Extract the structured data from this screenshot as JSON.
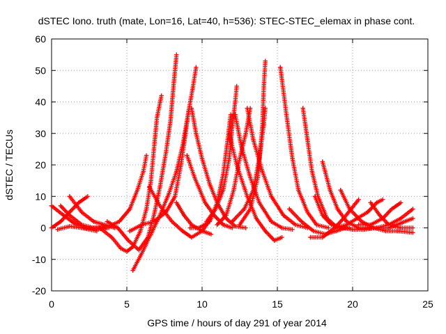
{
  "chart_data": {
    "type": "scatter",
    "title": "dSTEC Iono. truth (mate, Lon=16, Lat=40, h=536): STEC-STEC_elemax in phase cont.",
    "xlabel": "GPS time / hours of day 291 of year 2014",
    "ylabel": "dSTEC  / TECUs",
    "xlim": [
      0,
      25
    ],
    "ylim": [
      -20,
      60
    ],
    "xticks": [
      0,
      5,
      10,
      15,
      20,
      25
    ],
    "yticks": [
      -20,
      -10,
      0,
      10,
      20,
      30,
      40,
      50,
      60
    ],
    "grid": true,
    "marker": "+",
    "color": "#ff0000",
    "series": [
      {
        "points": [
          [
            0.0,
            7
          ],
          [
            0.8,
            4
          ],
          [
            1.5,
            1.5
          ],
          [
            2.3,
            0
          ],
          [
            3.0,
            -0.5
          ],
          [
            3.8,
            0
          ]
        ]
      },
      {
        "points": [
          [
            0.0,
            0
          ],
          [
            0.6,
            2
          ],
          [
            1.2,
            5
          ],
          [
            1.8,
            8
          ],
          [
            2.4,
            10
          ]
        ]
      },
      {
        "points": [
          [
            0.6,
            7
          ],
          [
            1.2,
            4
          ],
          [
            2.0,
            1
          ],
          [
            2.8,
            0
          ],
          [
            3.6,
            0
          ]
        ]
      },
      {
        "points": [
          [
            1.2,
            10
          ],
          [
            2.0,
            5
          ],
          [
            2.8,
            2
          ],
          [
            3.5,
            1
          ],
          [
            4.2,
            0
          ]
        ]
      },
      {
        "points": [
          [
            0.4,
            -0.5
          ],
          [
            1.2,
            0.5
          ],
          [
            2.0,
            0
          ],
          [
            3.0,
            -1
          ]
        ]
      },
      {
        "points": [
          [
            2.2,
            0
          ],
          [
            3.0,
            0
          ],
          [
            3.8,
            0.5
          ],
          [
            4.5,
            2
          ],
          [
            5.2,
            6
          ],
          [
            5.7,
            12
          ],
          [
            6.1,
            18
          ],
          [
            6.3,
            23
          ]
        ]
      },
      {
        "points": [
          [
            3.2,
            0
          ],
          [
            4.0,
            -3
          ],
          [
            4.6,
            -6.5
          ],
          [
            5.0,
            -7.5
          ],
          [
            5.4,
            -6
          ],
          [
            5.9,
            -1
          ],
          [
            6.3,
            6
          ],
          [
            6.6,
            15
          ],
          [
            6.8,
            25
          ],
          [
            7.0,
            35
          ],
          [
            7.3,
            42
          ]
        ]
      },
      {
        "points": [
          [
            3.7,
            2
          ],
          [
            4.4,
            0
          ],
          [
            5.1,
            -4
          ],
          [
            5.8,
            -7
          ],
          [
            6.4,
            -3
          ],
          [
            6.8,
            4
          ],
          [
            7.2,
            13
          ],
          [
            7.6,
            24
          ],
          [
            7.9,
            34
          ],
          [
            8.1,
            45
          ],
          [
            8.3,
            55
          ]
        ]
      },
      {
        "points": [
          [
            5.4,
            -13.5
          ],
          [
            6.0,
            -8
          ],
          [
            6.6,
            -2
          ],
          [
            7.2,
            4
          ],
          [
            7.8,
            11
          ],
          [
            8.3,
            18
          ],
          [
            8.7,
            26
          ],
          [
            9.1,
            37
          ],
          [
            9.4,
            45
          ],
          [
            9.6,
            51
          ]
        ]
      },
      {
        "points": [
          [
            6.5,
            13
          ],
          [
            7.2,
            7
          ],
          [
            8.0,
            2
          ],
          [
            8.7,
            -1
          ],
          [
            9.3,
            -3
          ],
          [
            10.0,
            -1
          ],
          [
            10.6,
            3
          ]
        ]
      },
      {
        "points": [
          [
            5.2,
            -1
          ],
          [
            6.0,
            1
          ],
          [
            6.8,
            2
          ],
          [
            7.6,
            5
          ],
          [
            8.2,
            10
          ],
          [
            8.6,
            20
          ],
          [
            8.9,
            30
          ],
          [
            9.1,
            37
          ]
        ]
      },
      {
        "points": [
          [
            8.3,
            8
          ],
          [
            8.8,
            4
          ],
          [
            9.3,
            1
          ],
          [
            10.0,
            -1
          ],
          [
            10.6,
            -2
          ]
        ]
      },
      {
        "points": [
          [
            9.3,
            38
          ],
          [
            9.6,
            30
          ],
          [
            10.0,
            22
          ],
          [
            10.5,
            14
          ],
          [
            11.0,
            8
          ],
          [
            11.6,
            3
          ],
          [
            12.2,
            0.5
          ],
          [
            12.9,
            0
          ]
        ]
      },
      {
        "points": [
          [
            9.0,
            23
          ],
          [
            9.5,
            16
          ],
          [
            10.2,
            8
          ],
          [
            10.8,
            4
          ],
          [
            11.4,
            1
          ],
          [
            12.0,
            0
          ]
        ]
      },
      {
        "points": [
          [
            9.2,
            0
          ],
          [
            9.8,
            0
          ],
          [
            10.5,
            2
          ],
          [
            11.0,
            8
          ],
          [
            11.4,
            17
          ],
          [
            11.7,
            28
          ],
          [
            11.9,
            36
          ]
        ]
      },
      {
        "points": [
          [
            10.3,
            2
          ],
          [
            10.9,
            6
          ],
          [
            11.4,
            12
          ],
          [
            11.8,
            22
          ],
          [
            12.0,
            32
          ],
          [
            12.2,
            40
          ],
          [
            12.3,
            45
          ]
        ]
      },
      {
        "points": [
          [
            11.0,
            1
          ],
          [
            11.6,
            4
          ],
          [
            12.1,
            12
          ],
          [
            12.5,
            22
          ],
          [
            12.9,
            30
          ],
          [
            13.2,
            38
          ]
        ]
      },
      {
        "points": [
          [
            12.2,
            36
          ],
          [
            12.6,
            26
          ],
          [
            13.2,
            16
          ],
          [
            13.8,
            8
          ],
          [
            14.6,
            2
          ],
          [
            15.3,
            0
          ],
          [
            16.0,
            -0.5
          ]
        ]
      },
      {
        "points": [
          [
            13.0,
            38
          ],
          [
            13.4,
            28
          ],
          [
            14.0,
            18
          ],
          [
            14.6,
            10
          ],
          [
            15.4,
            4
          ],
          [
            16.2,
            1
          ],
          [
            17.0,
            0
          ]
        ]
      },
      {
        "points": [
          [
            11.8,
            30
          ],
          [
            12.3,
            20
          ],
          [
            13.0,
            10
          ],
          [
            13.6,
            3
          ],
          [
            14.2,
            -1
          ],
          [
            14.8,
            -4
          ],
          [
            15.3,
            -3
          ]
        ]
      },
      {
        "points": [
          [
            12.0,
            2
          ],
          [
            12.8,
            6
          ],
          [
            13.4,
            12
          ],
          [
            13.8,
            22
          ],
          [
            14.1,
            33
          ],
          [
            14.2,
            38
          ]
        ]
      },
      {
        "points": [
          [
            12.5,
            1
          ],
          [
            13.2,
            6
          ],
          [
            13.7,
            16
          ],
          [
            14.0,
            32
          ],
          [
            14.1,
            45
          ],
          [
            14.2,
            53
          ]
        ]
      },
      {
        "points": [
          [
            15.2,
            51
          ],
          [
            15.6,
            36
          ],
          [
            16.0,
            22
          ],
          [
            16.4,
            12
          ],
          [
            17.0,
            5
          ],
          [
            17.6,
            1
          ],
          [
            18.4,
            0
          ]
        ]
      },
      {
        "points": [
          [
            16.7,
            38
          ],
          [
            17.0,
            28
          ],
          [
            17.3,
            18
          ],
          [
            17.7,
            10
          ],
          [
            18.3,
            3
          ],
          [
            19.0,
            0
          ],
          [
            19.8,
            0
          ]
        ]
      },
      {
        "points": [
          [
            15.8,
            6
          ],
          [
            16.6,
            2
          ],
          [
            17.4,
            -1
          ],
          [
            18.2,
            -2
          ],
          [
            18.9,
            -1
          ],
          [
            19.5,
            0
          ]
        ]
      },
      {
        "points": [
          [
            17.5,
            10
          ],
          [
            18.0,
            4
          ],
          [
            18.6,
            1
          ],
          [
            19.3,
            0
          ],
          [
            20.0,
            -0.5
          ]
        ]
      },
      {
        "points": [
          [
            18.0,
            21
          ],
          [
            18.5,
            12
          ],
          [
            19.0,
            6
          ],
          [
            19.6,
            2
          ],
          [
            20.4,
            0
          ],
          [
            21.2,
            0
          ]
        ]
      },
      {
        "points": [
          [
            17.2,
            -3
          ],
          [
            18.0,
            -3
          ],
          [
            18.8,
            0
          ],
          [
            19.4,
            3
          ],
          [
            19.9,
            6
          ],
          [
            20.4,
            9
          ]
        ]
      },
      {
        "points": [
          [
            18.8,
            0
          ],
          [
            19.6,
            1
          ],
          [
            20.3,
            3
          ],
          [
            21.0,
            5
          ],
          [
            21.6,
            8
          ],
          [
            22.0,
            9
          ]
        ]
      },
      {
        "points": [
          [
            19.2,
            12
          ],
          [
            19.8,
            6
          ],
          [
            20.6,
            2
          ],
          [
            21.4,
            0
          ],
          [
            22.2,
            -1
          ],
          [
            23.0,
            -1
          ],
          [
            24.0,
            -1.5
          ]
        ]
      },
      {
        "points": [
          [
            20.0,
            -0.5
          ],
          [
            20.8,
            -0.5
          ],
          [
            21.6,
            0
          ],
          [
            22.4,
            1
          ],
          [
            23.2,
            3
          ],
          [
            24.0,
            6
          ]
        ]
      },
      {
        "points": [
          [
            21.2,
            8
          ],
          [
            21.8,
            4
          ],
          [
            22.4,
            1
          ],
          [
            23.2,
            0
          ],
          [
            24.0,
            0
          ]
        ]
      },
      {
        "points": [
          [
            20.4,
            1
          ],
          [
            21.2,
            1
          ],
          [
            22.0,
            3
          ],
          [
            22.6,
            6
          ],
          [
            23.2,
            8
          ]
        ]
      },
      {
        "points": [
          [
            21.6,
            0
          ],
          [
            22.4,
            0
          ],
          [
            23.2,
            1.5
          ],
          [
            24.0,
            3
          ]
        ]
      }
    ]
  }
}
